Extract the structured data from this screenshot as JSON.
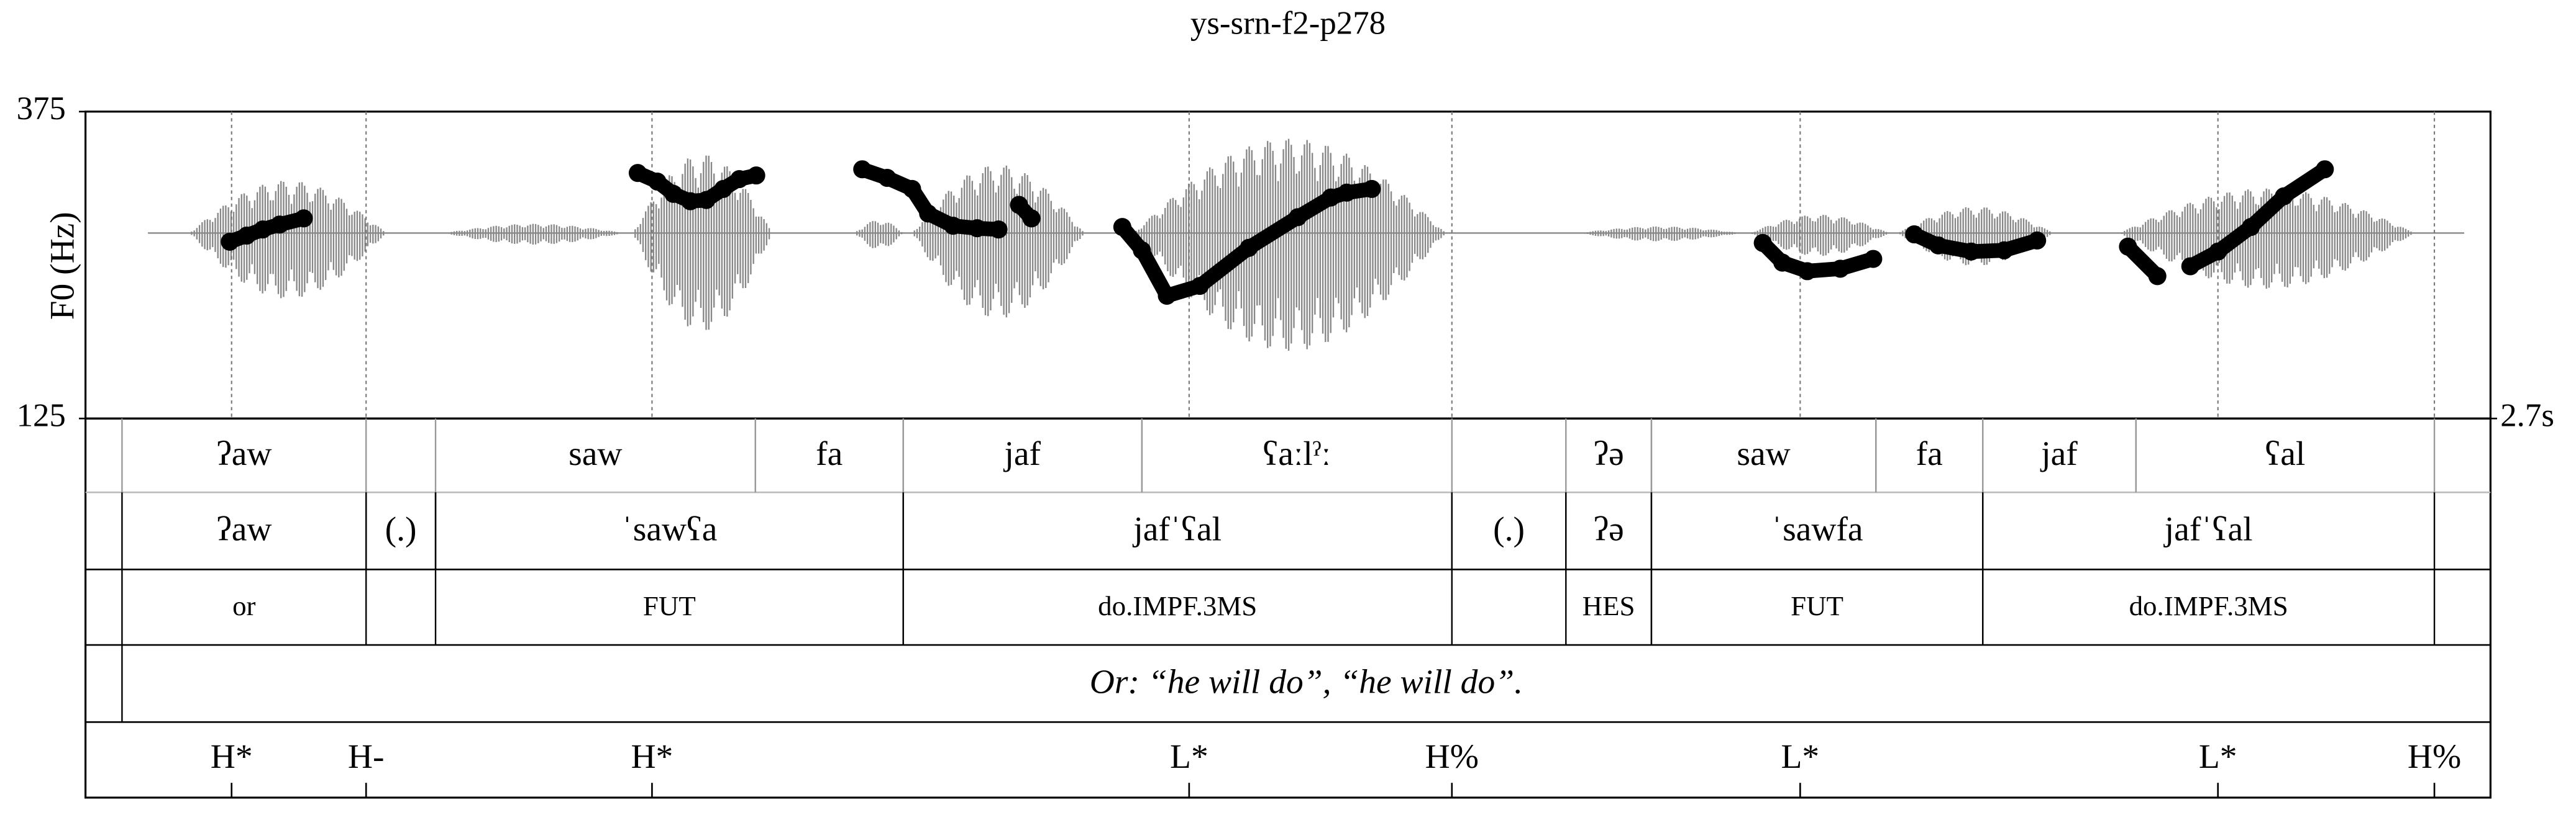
{
  "chart_data": {
    "type": "pitch",
    "title": "ys-srn-f2-p278",
    "y_label": "F0 (Hz)",
    "ylim": [
      125,
      375
    ],
    "yticks": [
      125,
      375
    ],
    "xlim": [
      0,
      2.7
    ],
    "xticks": [
      {
        "value": 2.7,
        "label": "2.7s"
      }
    ],
    "series": [
      {
        "name": "F0",
        "color": "#000000",
        "x": [
          0.162,
          0.181,
          0.199,
          0.218,
          0.245,
          null,
          0.62,
          0.642,
          0.66,
          0.679,
          0.697,
          0.716,
          0.734,
          0.753,
          null,
          0.872,
          0.9,
          0.928,
          0.946,
          0.974,
          1.001,
          1.025,
          null,
          1.048,
          1.062,
          null,
          1.164,
          1.186,
          1.214,
          1.251,
          1.306,
          1.361,
          1.398,
          1.416,
          1.444,
          null,
          1.883,
          1.905,
          1.933,
          1.97,
          2.007,
          null,
          2.053,
          2.08,
          2.117,
          2.154,
          2.191,
          null,
          2.293,
          2.326,
          null,
          2.363,
          2.394,
          2.431,
          2.468,
          2.514
        ],
        "values": [
          269,
          274,
          279,
          283,
          288,
          null,
          325,
          318,
          308,
          302,
          303,
          312,
          320,
          323,
          null,
          328,
          321,
          312,
          292,
          282,
          280,
          279,
          null,
          299,
          288,
          null,
          281,
          262,
          225,
          233,
          264,
          289,
          305,
          309,
          312,
          null,
          268,
          252,
          245,
          247,
          255,
          null,
          275,
          266,
          261,
          262,
          270,
          null,
          265,
          241,
          null,
          249,
          261,
          281,
          306,
          328
        ]
      }
    ],
    "tiers": [
      [
        {
          "label": "ʔaw",
          "start": 0.041,
          "end": 0.315
        },
        {
          "label": "saw",
          "start": 0.393,
          "end": 0.752
        },
        {
          "label": "fa",
          "start": 0.752,
          "end": 0.918
        },
        {
          "label": "jaf",
          "start": 0.918,
          "end": 1.186
        },
        {
          "label": "ʕaːlˀː",
          "start": 1.186,
          "end": 1.534
        },
        {
          "label": "ʔə",
          "start": 1.662,
          "end": 1.758
        },
        {
          "label": "saw",
          "start": 1.758,
          "end": 2.01
        },
        {
          "label": "fa",
          "start": 2.01,
          "end": 2.13
        },
        {
          "label": "jaf",
          "start": 2.13,
          "end": 2.302
        },
        {
          "label": "ʕal",
          "start": 2.302,
          "end": 2.637
        }
      ],
      [
        {
          "label": "ʔaw",
          "start": 0.041,
          "end": 0.315
        },
        {
          "label": "(.)",
          "start": 0.315,
          "end": 0.393
        },
        {
          "label": "ˈsawʕa",
          "start": 0.393,
          "end": 0.918
        },
        {
          "label": "jafˈʕal",
          "start": 0.918,
          "end": 1.534
        },
        {
          "label": "(.)",
          "start": 1.534,
          "end": 1.662
        },
        {
          "label": "ʔə",
          "start": 1.662,
          "end": 1.758
        },
        {
          "label": "ˈsawfa",
          "start": 1.758,
          "end": 2.13
        },
        {
          "label": "jafˈʕal",
          "start": 2.13,
          "end": 2.637
        }
      ],
      [
        {
          "label": "or",
          "start": 0.041,
          "end": 0.315
        },
        {
          "label": "FUT",
          "start": 0.393,
          "end": 0.918
        },
        {
          "label": "do.IMPF.3MS",
          "start": 0.918,
          "end": 1.534
        },
        {
          "label": "HES",
          "start": 1.662,
          "end": 1.758
        },
        {
          "label": "FUT",
          "start": 1.758,
          "end": 2.13
        },
        {
          "label": "do.IMPF.3MS",
          "start": 2.13,
          "end": 2.637
        }
      ],
      [
        {
          "label": "Or: “he will do”, “he will do”.",
          "start": 0.041,
          "end": 2.7
        }
      ]
    ],
    "tones": [
      {
        "label": "H*",
        "time": 0.164
      },
      {
        "label": "H-",
        "time": 0.315
      },
      {
        "label": "H*",
        "time": 0.636
      },
      {
        "label": "L*",
        "time": 1.239
      },
      {
        "label": "H%",
        "time": 1.534
      },
      {
        "label": "L*",
        "time": 1.925
      },
      {
        "label": "L*",
        "time": 2.394
      },
      {
        "label": "H%",
        "time": 2.637
      }
    ]
  }
}
